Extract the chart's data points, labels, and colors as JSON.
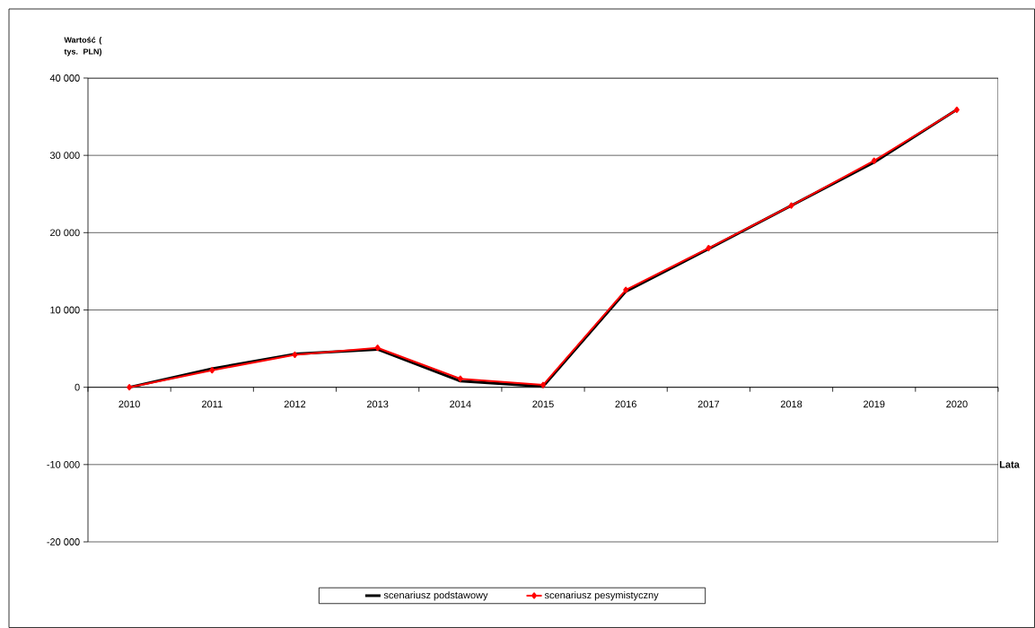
{
  "chart_data": {
    "type": "line",
    "xlabel": "Lata",
    "ylabel": "Wartość ( tys. PLN)",
    "categories": [
      "2010",
      "2011",
      "2012",
      "2013",
      "2014",
      "2015",
      "2016",
      "2017",
      "2018",
      "2019",
      "2020"
    ],
    "series": [
      {
        "name": "scenariusz podstawowy",
        "color": "#000000",
        "marker": "none",
        "values": [
          0,
          2400,
          4300,
          4900,
          800,
          100,
          12400,
          17900,
          23500,
          29100,
          35900
        ]
      },
      {
        "name": "scenariusz pesymistyczny",
        "color": "#ff0000",
        "marker": "diamond",
        "values": [
          0,
          2200,
          4200,
          5100,
          1100,
          300,
          12600,
          18000,
          23500,
          29300,
          35900
        ]
      }
    ],
    "ylim": [
      -20000,
      40000
    ],
    "yticks": [
      {
        "value": -20000,
        "label": "-20 000"
      },
      {
        "value": -10000,
        "label": "-10 000"
      },
      {
        "value": 0,
        "label": "0"
      },
      {
        "value": 10000,
        "label": "10 000"
      },
      {
        "value": 20000,
        "label": "20 000"
      },
      {
        "value": 30000,
        "label": "30 000"
      },
      {
        "value": 40000,
        "label": "40 000"
      }
    ],
    "grid": "y",
    "legend": "bottom",
    "line_style": "solid"
  }
}
